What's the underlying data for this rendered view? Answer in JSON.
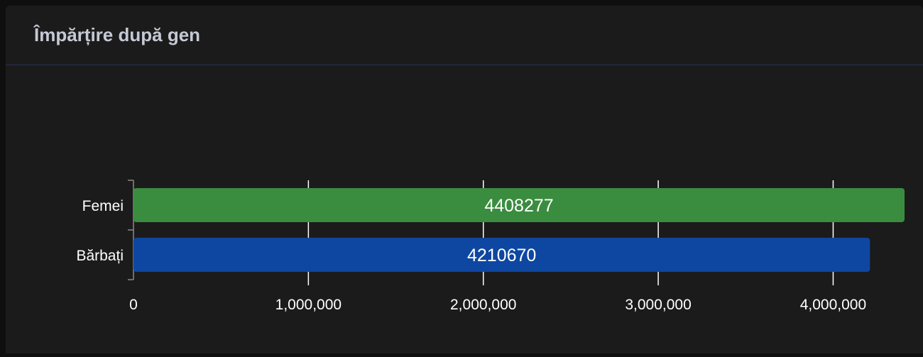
{
  "card": {
    "title": "Împărțire după gen"
  },
  "chart_data": {
    "type": "bar",
    "orientation": "horizontal",
    "title": "Împărțire după gen",
    "categories": [
      "Femei",
      "Bărbați"
    ],
    "values": [
      4408277,
      4210670
    ],
    "value_labels": [
      "4408277",
      "4210670"
    ],
    "bar_colors": [
      "#3a8c3f",
      "#0e47a1"
    ],
    "xlim": [
      0,
      4400000
    ],
    "x_ticks": [
      0,
      1000000,
      2000000,
      3000000,
      4000000
    ],
    "x_tick_labels": [
      "0",
      "1,000,000",
      "2,000,000",
      "3,000,000",
      "4,000,000"
    ],
    "grid": true,
    "xlabel": "",
    "ylabel": ""
  }
}
